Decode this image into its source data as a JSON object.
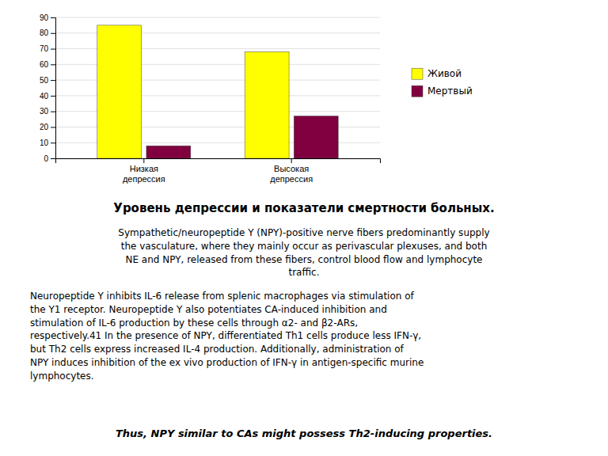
{
  "chart_data": {
    "type": "bar",
    "title": "Уровень депрессии и показатели смертности больных.",
    "categories": [
      "Низкая\nдепрессия",
      "Высокая\nдепрессия"
    ],
    "series": [
      {
        "name": "Живой",
        "color": "#FFFF00",
        "values": [
          85,
          68
        ]
      },
      {
        "name": "Мертвый",
        "color": "#800040",
        "values": [
          8,
          27
        ]
      }
    ],
    "ylim": [
      0,
      90
    ],
    "yticks": [
      0,
      10,
      20,
      30,
      40,
      50,
      60,
      70,
      80,
      90
    ],
    "grid": true,
    "legend": "right",
    "annotations": [
      "Sympathetic/neuropeptide Y (NPY)-positive nerve fibers predominantly supply\nthe vasculature, where they mainly occur as perivascular plexuses, and both\nNE and NPY, released from these fibers, control blood flow and lymphocyte\ntraffic.",
      "Neuropeptide Y inhibits IL-6 release from splenic macrophages via stimulation of\nthe Y1 receptor. Neuropeptide Y also potentiates CA-induced inhibition and\nstimulation of IL-6 production by these cells through α2- and β2-ARs,\nrespectively.41 In the presence of NPY, differentiated Th1 cells produce less IFN-γ,\nbut Th2 cells express increased IL-4 production. Additionally, administration of\nNPY induces inhibition of the ex vivo production of IFN-γ in antigen-specific murine\nlymphocytes.",
      "Thus, NPY similar to CAs might possess Th2-inducing properties."
    ]
  }
}
